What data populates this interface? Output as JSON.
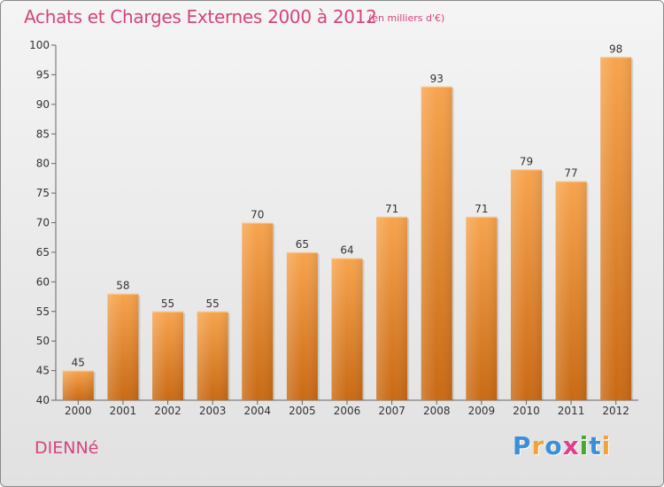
{
  "header": {
    "title": "Achats et Charges Externes 2000 à 2012",
    "subtitle": "(en milliers d'€)"
  },
  "footer": {
    "commune": "DIENNé",
    "logo_letters": [
      "P",
      "r",
      "o",
      "x",
      "i",
      "t",
      "i"
    ],
    "logo_colors": [
      "#3a8fd6",
      "#f2a23c",
      "#3a8fd6",
      "#e0408a",
      "#46a832",
      "#3a8fd6",
      "#f2a23c"
    ]
  },
  "colors": {
    "bar_top": "#f7a44e",
    "bar_bottom": "#c96a14",
    "title": "#d4457e"
  },
  "chart_data": {
    "type": "bar",
    "title": "Achats et Charges Externes 2000 à 2012",
    "subtitle": "(en milliers d'€)",
    "xlabel": "",
    "ylabel": "",
    "categories": [
      "2000",
      "2001",
      "2002",
      "2003",
      "2004",
      "2005",
      "2006",
      "2007",
      "2008",
      "2009",
      "2010",
      "2011",
      "2012"
    ],
    "values": [
      45,
      58,
      55,
      55,
      70,
      65,
      64,
      71,
      93,
      71,
      79,
      77,
      98
    ],
    "ylim": [
      40,
      100
    ],
    "yticks": [
      40,
      45,
      50,
      55,
      60,
      65,
      70,
      75,
      80,
      85,
      90,
      95,
      100
    ],
    "grid": false,
    "legend": "none"
  }
}
